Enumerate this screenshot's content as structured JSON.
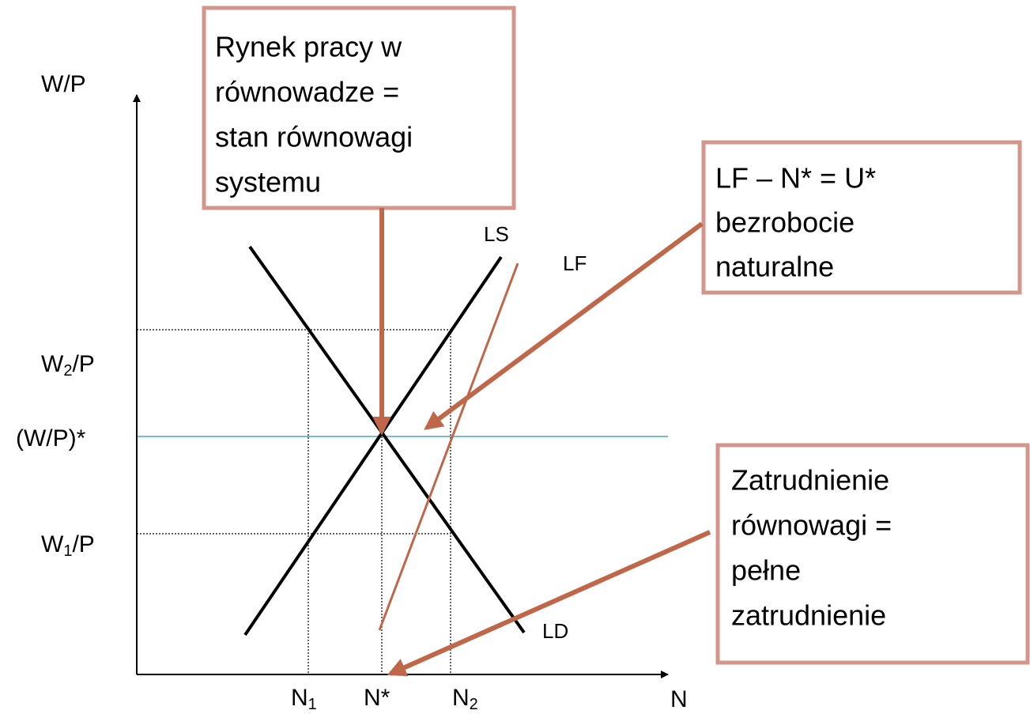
{
  "y_axis_label": "W/P",
  "x_axis_label": "N",
  "y_labels": [
    {
      "base": "W",
      "sub": "2",
      "tail": "/P"
    },
    {
      "base": "(W/P)*"
    },
    {
      "base": "W",
      "sub": "1",
      "tail": "/P"
    }
  ],
  "x_labels": [
    {
      "base": "N",
      "sub": "1"
    },
    {
      "base": "N*"
    },
    {
      "base": "N",
      "sub": "2"
    }
  ],
  "curves": {
    "ls": "LS",
    "lf": "LF",
    "ld": "LD"
  },
  "boxes": [
    {
      "lines": [
        "Rynek pracy w",
        "równowadze =",
        "stan równowagi",
        "systemu"
      ]
    },
    {
      "lines": [
        "LF – N* = U*",
        "bezrobocie",
        "naturalne"
      ]
    },
    {
      "lines": [
        "Zatrudnienie",
        "równowagi =",
        "pełne",
        "zatrudnienie"
      ]
    }
  ]
}
